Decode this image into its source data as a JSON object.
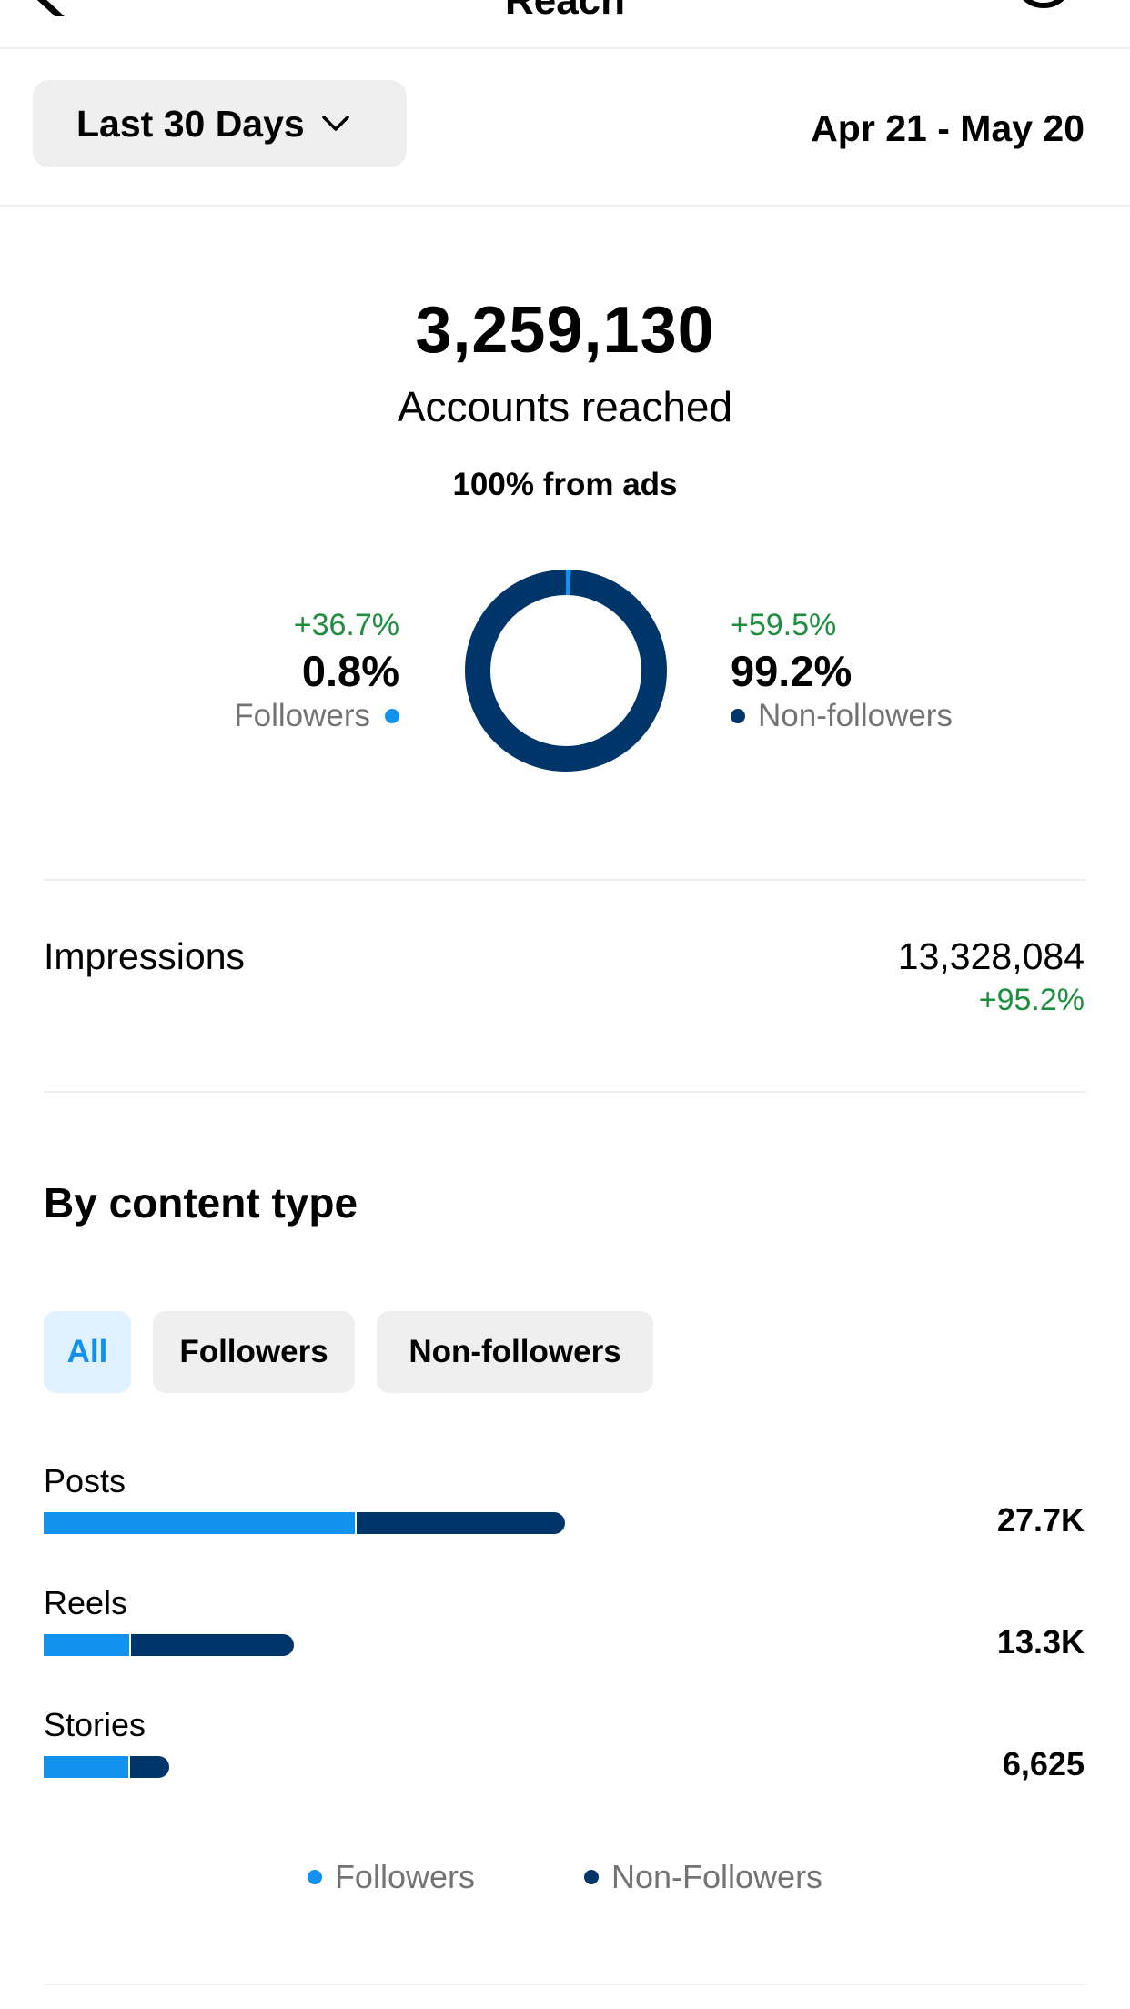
{
  "nav": {
    "title": "Reach"
  },
  "filter": {
    "range_label": "Last 30 Days",
    "date_range": "Apr 21 - May 20"
  },
  "summary": {
    "accounts_reached": "3,259,130",
    "accounts_reached_label": "Accounts reached",
    "ads_note": "100% from ads"
  },
  "split": {
    "followers": {
      "change": "+36.7%",
      "percent": "0.8%",
      "label": "Followers",
      "fraction": 0.008
    },
    "non_followers": {
      "change": "+59.5%",
      "percent": "99.2%",
      "label": "Non-followers",
      "fraction": 0.992
    }
  },
  "impressions": {
    "label": "Impressions",
    "value": "13,328,084",
    "change": "+95.2%"
  },
  "content_type": {
    "heading": "By content type",
    "tabs": [
      "All",
      "Followers",
      "Non-followers"
    ],
    "selected_tab": "All",
    "rows": [
      {
        "label": "Posts",
        "value": "27.7K",
        "total_fraction": 0.5,
        "followers_fraction": 0.6
      },
      {
        "label": "Reels",
        "value": "13.3K",
        "total_fraction": 0.24,
        "followers_fraction": 0.35
      },
      {
        "label": "Stories",
        "value": "6,625",
        "total_fraction": 0.12,
        "followers_fraction": 0.69
      }
    ],
    "legend": [
      "Followers",
      "Non-Followers"
    ]
  },
  "colors": {
    "followers": "#1192ee",
    "non_followers": "#003569",
    "positive_change": "#1e8e3e",
    "muted_text": "#737373"
  },
  "icons": [
    "chevron-left-icon",
    "info-icon",
    "chevron-down-icon"
  ]
}
